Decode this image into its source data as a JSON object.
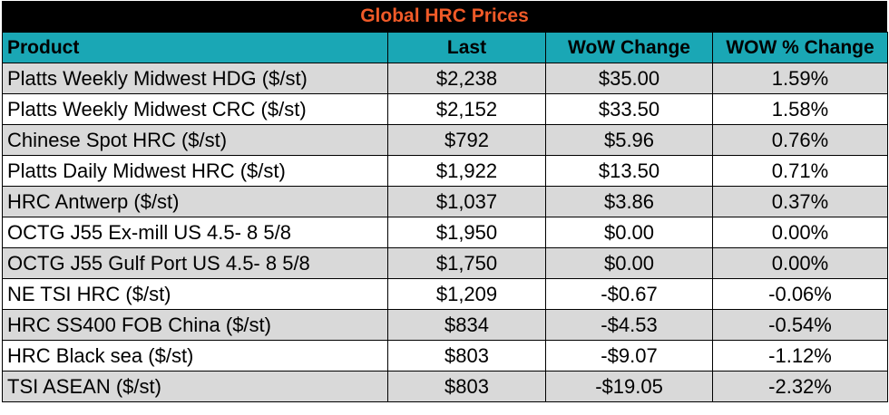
{
  "title": "Global HRC Prices",
  "colors": {
    "title_bg": "#000000",
    "title_text": "#f05a28",
    "header_bg": "#1aa7b5",
    "row_shade": "#d9d9d9",
    "row_plain": "#ffffff"
  },
  "headers": {
    "product": "Product",
    "last": "Last",
    "wow_change": "WoW Change",
    "wow_pct_change": "WOW % Change"
  },
  "rows": [
    {
      "product": "Platts Weekly Midwest HDG ($/st)",
      "last": "$2,238",
      "wow_change": "$35.00",
      "wow_pct": "1.59%"
    },
    {
      "product": "Platts Weekly Midwest CRC ($/st)",
      "last": "$2,152",
      "wow_change": "$33.50",
      "wow_pct": "1.58%"
    },
    {
      "product": "Chinese Spot HRC ($/st)",
      "last": "$792",
      "wow_change": "$5.96",
      "wow_pct": "0.76%"
    },
    {
      "product": "Platts Daily Midwest HRC ($/st)",
      "last": "$1,922",
      "wow_change": "$13.50",
      "wow_pct": "0.71%"
    },
    {
      "product": "HRC Antwerp ($/st)",
      "last": "$1,037",
      "wow_change": "$3.86",
      "wow_pct": "0.37%"
    },
    {
      "product": "OCTG J55 Ex-mill US 4.5- 8 5/8",
      "last": "$1,950",
      "wow_change": "$0.00",
      "wow_pct": "0.00%"
    },
    {
      "product": "OCTG J55 Gulf Port US 4.5- 8 5/8",
      "last": "$1,750",
      "wow_change": "$0.00",
      "wow_pct": "0.00%"
    },
    {
      "product": "NE TSI HRC ($/st)",
      "last": "$1,209",
      "wow_change": "-$0.67",
      "wow_pct": "-0.06%"
    },
    {
      "product": "HRC SS400 FOB China ($/st)",
      "last": "$834",
      "wow_change": "-$4.53",
      "wow_pct": "-0.54%"
    },
    {
      "product": "HRC Black sea ($/st)",
      "last": "$803",
      "wow_change": "-$9.07",
      "wow_pct": "-1.12%"
    },
    {
      "product": "TSI ASEAN ($/st)",
      "last": "$803",
      "wow_change": "-$19.05",
      "wow_pct": "-2.32%"
    }
  ]
}
